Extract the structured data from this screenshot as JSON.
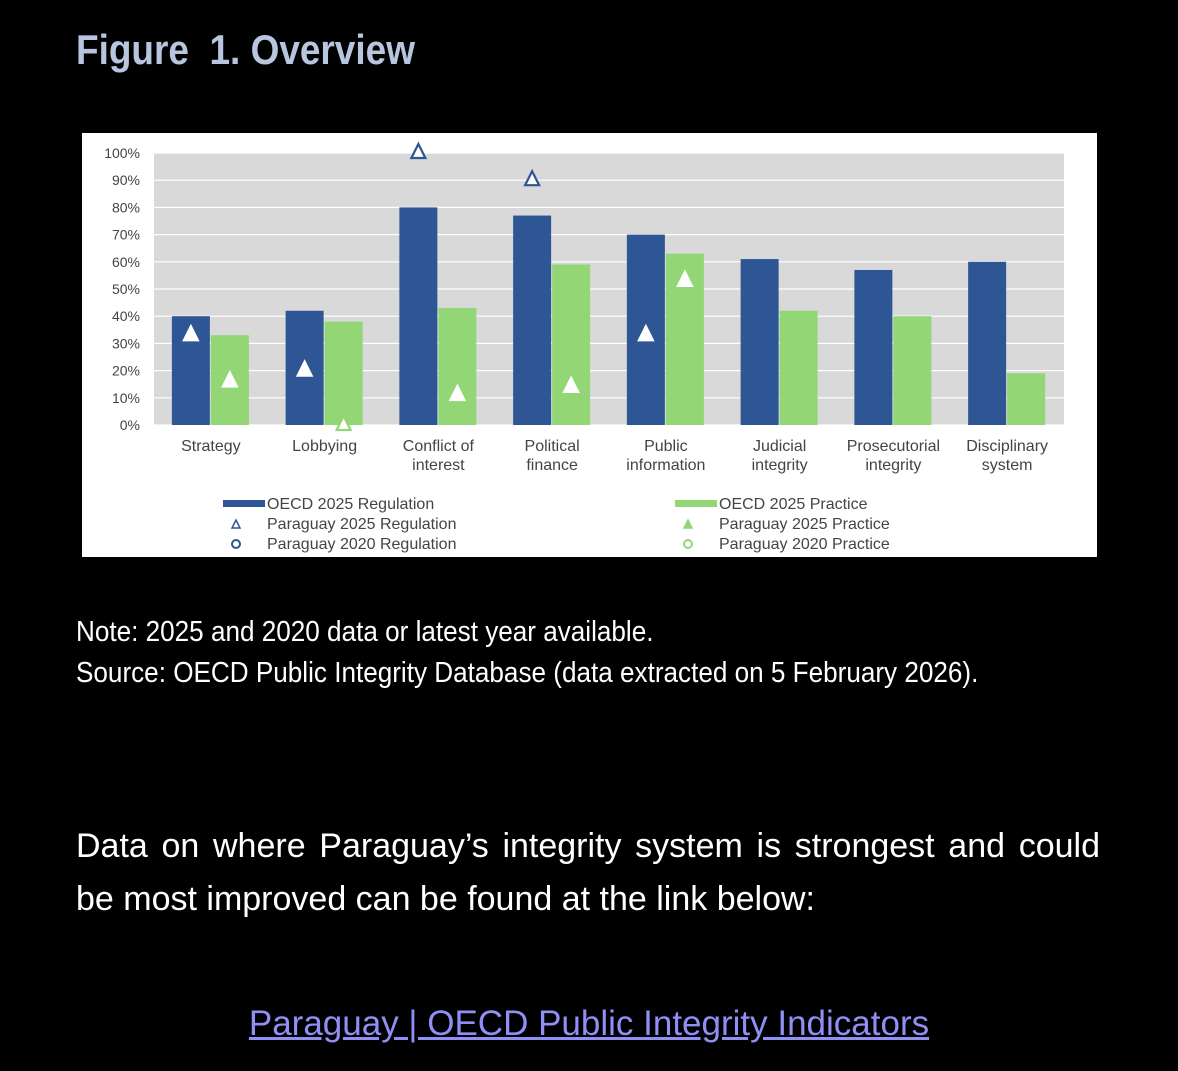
{
  "figure_title": "Figure  1. Overview",
  "note": "Note: 2025 and 2020 data or latest year available.",
  "source": "Source: OECD Public Integrity Database (data extracted on 5 February 2026).",
  "body_text": "Data on where Paraguay’s integrity system is strongest and could be most improved can be found at the link below:",
  "link_text": "Paraguay | OECD Public Integrity Indicators",
  "chart_data": {
    "type": "bar",
    "categories": [
      [
        "Strategy"
      ],
      [
        "Lobbying"
      ],
      [
        "Conflict of",
        "interest"
      ],
      [
        "Political",
        "finance"
      ],
      [
        "Public",
        "information"
      ],
      [
        "Judicial",
        "integrity"
      ],
      [
        "Prosecutorial",
        "integrity"
      ],
      [
        "Disciplinary",
        "system"
      ]
    ],
    "ylim": [
      0,
      100
    ],
    "yticks": [
      0,
      10,
      20,
      30,
      40,
      50,
      60,
      70,
      80,
      90,
      100
    ],
    "ytick_labels": [
      "0%",
      "10%",
      "20%",
      "30%",
      "40%",
      "50%",
      "60%",
      "70%",
      "80%",
      "90%",
      "100%"
    ],
    "grid": true,
    "series": [
      {
        "name": "OECD 2025 Regulation",
        "kind": "bar",
        "color": "#2e5594",
        "values": [
          40,
          42,
          80,
          77,
          70,
          61,
          57,
          60
        ]
      },
      {
        "name": "OECD 2025 Practice",
        "kind": "bar",
        "color": "#92d675",
        "values": [
          33,
          38,
          43,
          59,
          63,
          42,
          40,
          19
        ]
      },
      {
        "name": "Paraguay 2025 Regulation",
        "kind": "marker",
        "marker": "triangle-open",
        "color": "#2e5594",
        "values": [
          33,
          20,
          100,
          90,
          33,
          null,
          null,
          null
        ]
      },
      {
        "name": "Paraguay 2025 Practice",
        "kind": "marker",
        "marker": "triangle-open",
        "color": "#92d675",
        "values": [
          16,
          0,
          11,
          14,
          53,
          null,
          null,
          null
        ]
      },
      {
        "name": "Paraguay 2020 Regulation",
        "kind": "marker",
        "marker": "circle-open",
        "color": "#2e5594",
        "values": [
          null,
          null,
          null,
          null,
          null,
          null,
          null,
          null
        ]
      },
      {
        "name": "Paraguay 2020 Practice",
        "kind": "marker",
        "marker": "circle-open",
        "color": "#92d675",
        "values": [
          null,
          null,
          null,
          null,
          null,
          null,
          null,
          null
        ]
      }
    ],
    "legend": {
      "position": "bottom",
      "left": [
        {
          "label": "OECD 2025 Regulation",
          "symbol": "bar",
          "color": "#2e5594"
        },
        {
          "label": "Paraguay 2025 Regulation",
          "symbol": "triangle",
          "color": "#2e5594"
        },
        {
          "label": "Paraguay 2020 Regulation",
          "symbol": "circle",
          "color": "#2e5594"
        }
      ],
      "right": [
        {
          "label": "OECD 2025 Practice",
          "symbol": "bar",
          "color": "#92d675"
        },
        {
          "label": "Paraguay 2025 Practice",
          "symbol": "triangle",
          "color": "#92d675"
        },
        {
          "label": "Paraguay 2020 Practice",
          "symbol": "circle",
          "color": "#92d675"
        }
      ]
    },
    "plot_background": "#d9d9d9"
  }
}
